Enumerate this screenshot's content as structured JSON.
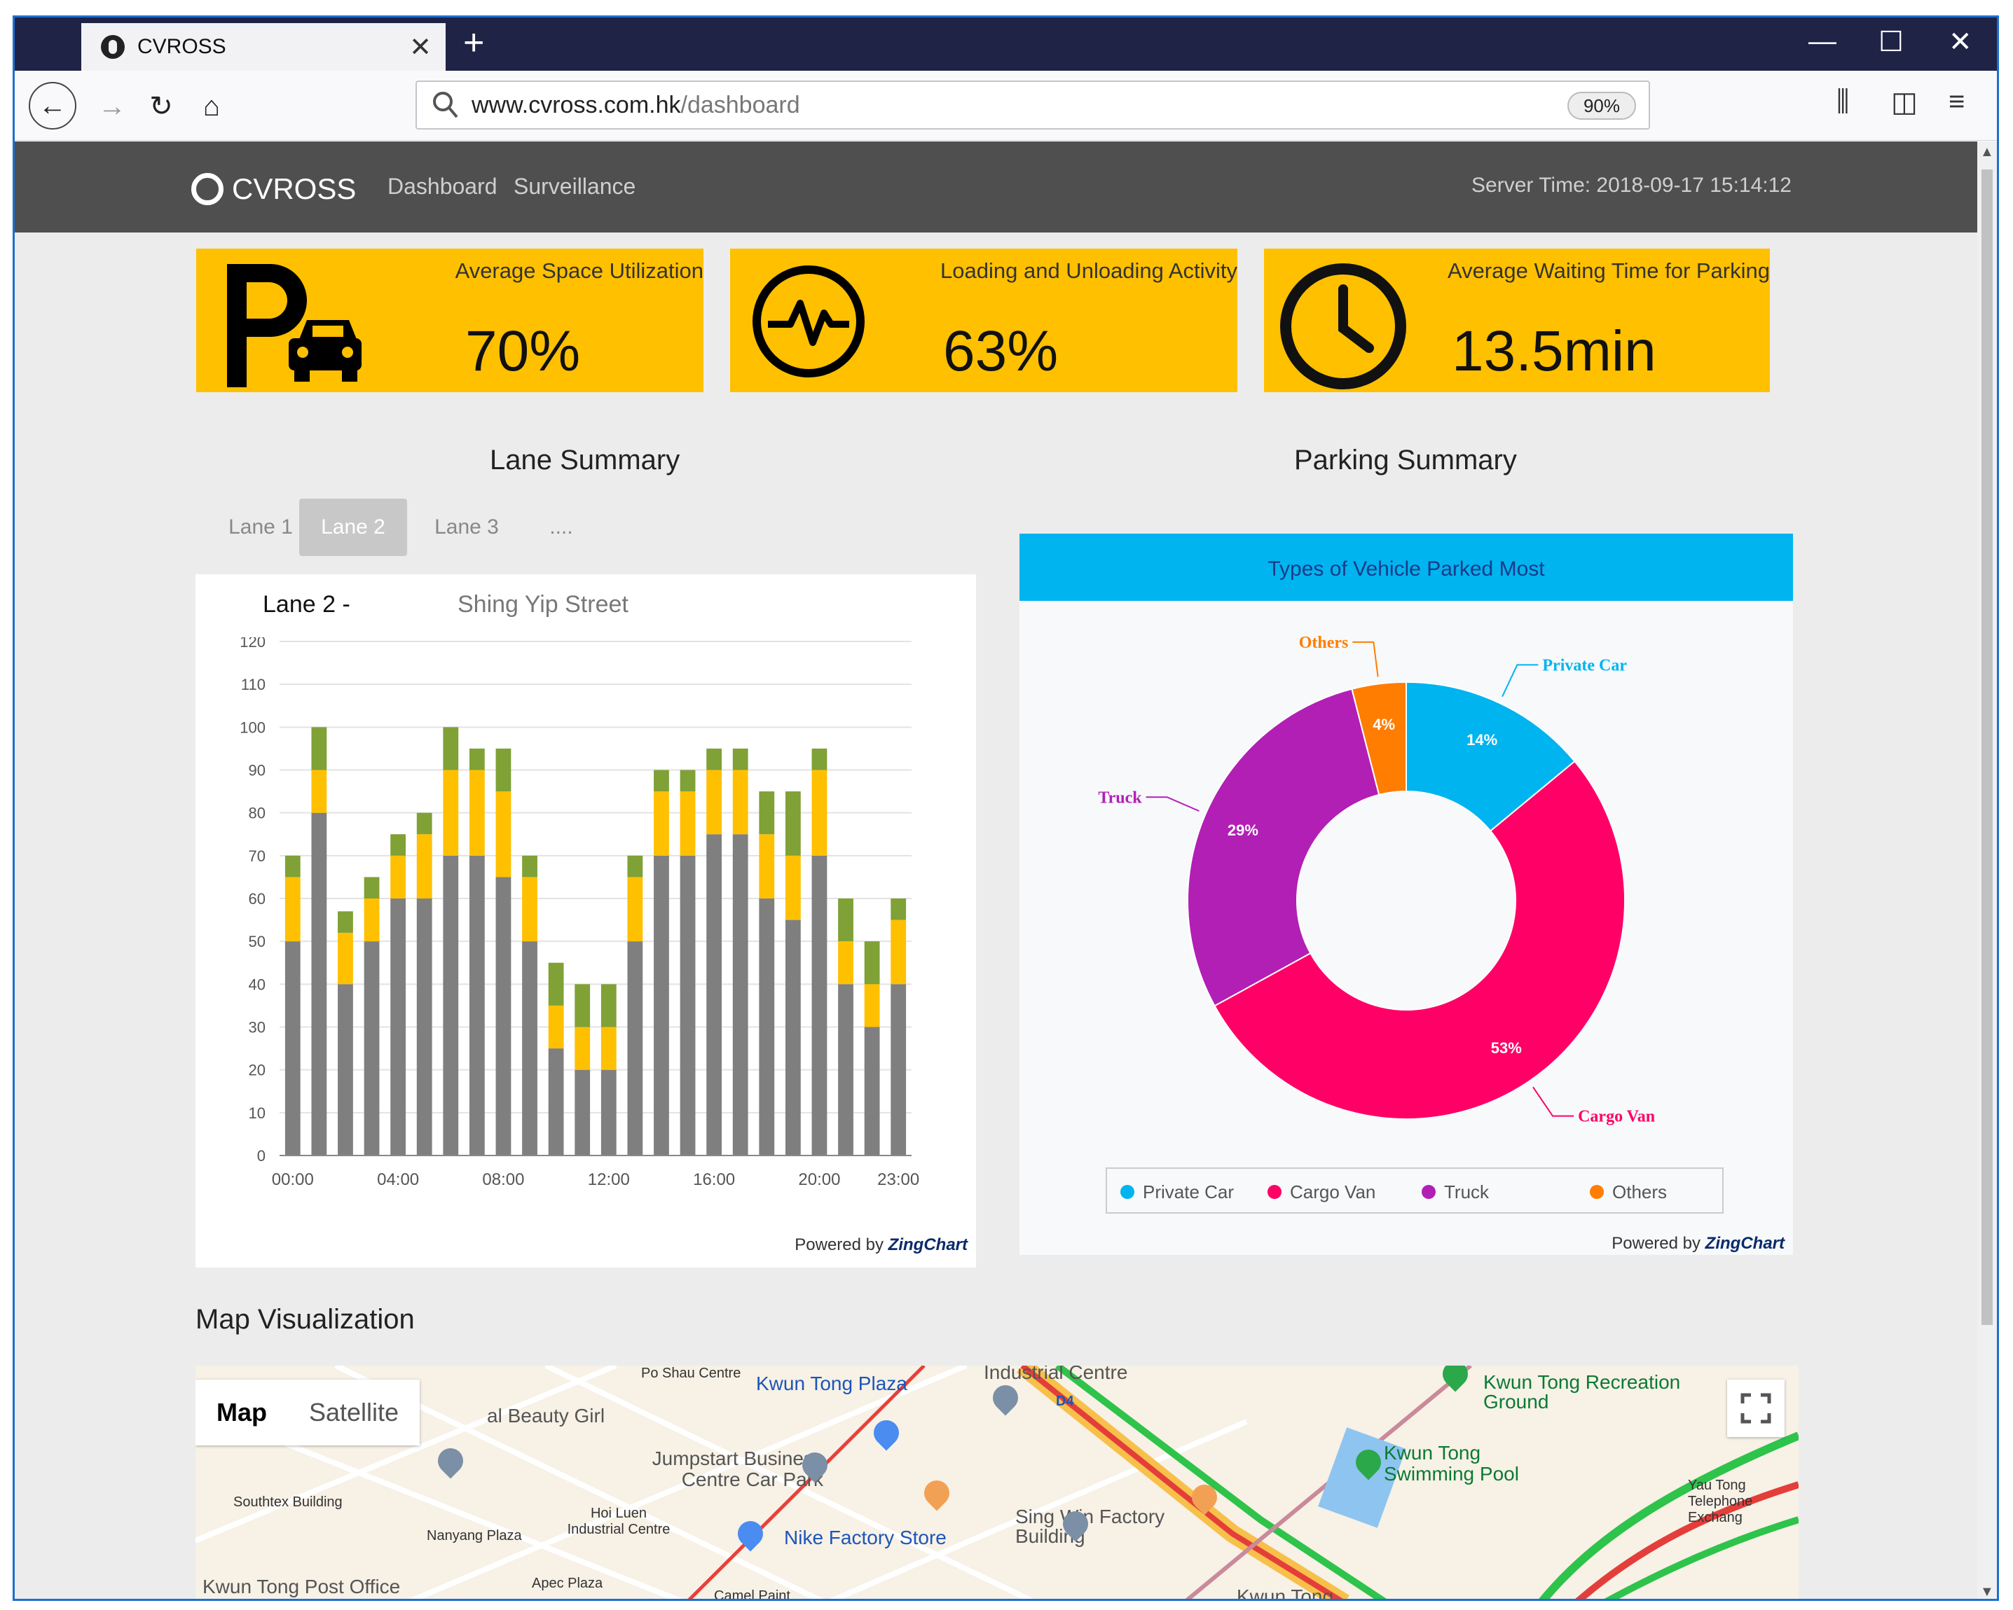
{
  "browser": {
    "tab_title": "CVROSS",
    "url_host": "www.cvross.com.hk",
    "url_path": "/dashboard",
    "zoom": "90%"
  },
  "site": {
    "logo": "CVROSS",
    "nav": [
      "Dashboard",
      "Surveillance"
    ],
    "server_time": "Server Time: 2018-09-17 15:14:12"
  },
  "kpis": [
    {
      "label": "Average Space Utilization",
      "value": "70%",
      "icon": "parking-car-icon"
    },
    {
      "label": "Loading and Unloading Activity",
      "value": "63%",
      "icon": "activity-pulse-icon"
    },
    {
      "label": "Average Waiting Time for Parking",
      "value": "13.5min",
      "icon": "clock-icon"
    }
  ],
  "lane_summary": {
    "title": "Lane Summary",
    "tabs": [
      "Lane 1",
      "Lane 2",
      "Lane 3",
      "...."
    ],
    "active_tab": "Lane 2",
    "panel_lane": "Lane 2 -",
    "panel_street": "Shing Yip Street",
    "powered": "Powered by",
    "powered_brand": "ZingChart"
  },
  "parking_summary": {
    "title": "Parking Summary",
    "powered": "Powered by",
    "powered_brand": "ZingChart"
  },
  "map": {
    "title": "Map Visualization",
    "buttons": [
      "Map",
      "Satellite"
    ],
    "labels": [
      "Po Shau Centre",
      "Kwun Tong Plaza",
      "Industrial Centre",
      "Kwun Tong Recreation Ground",
      "al Beauty Girl",
      "Jumpstart Business Centre Car Park",
      "Kwun Tong Swimming Pool",
      "Southtex Building",
      "Nanyang Plaza",
      "Hoi Luen Industrial Centre",
      "Nike Factory Store",
      "Sing Win Factory Building",
      "Yau Tong Telephone Exchang",
      "Kwun Tong Post Office",
      "Apec Plaza",
      "Camel Paint",
      "Kwun Tong",
      "D4"
    ]
  },
  "chart_data": [
    {
      "type": "bar",
      "stacked": true,
      "title": "",
      "categories": [
        "00:00",
        "01:00",
        "02:00",
        "03:00",
        "04:00",
        "05:00",
        "06:00",
        "07:00",
        "08:00",
        "09:00",
        "10:00",
        "11:00",
        "12:00",
        "13:00",
        "14:00",
        "15:00",
        "16:00",
        "17:00",
        "18:00",
        "19:00",
        "20:00",
        "21:00",
        "22:00",
        "23:00"
      ],
      "x_tick_labels": [
        "00:00",
        "04:00",
        "08:00",
        "12:00",
        "16:00",
        "20:00",
        "23:00"
      ],
      "series": [
        {
          "values": [
            50,
            80,
            40,
            50,
            60,
            60,
            70,
            70,
            65,
            50,
            25,
            20,
            20,
            50,
            70,
            70,
            75,
            75,
            60,
            55,
            70,
            40,
            30,
            40
          ],
          "color": "#7f7f7f"
        },
        {
          "values": [
            15,
            10,
            12,
            10,
            10,
            15,
            20,
            20,
            20,
            15,
            10,
            10,
            10,
            15,
            15,
            15,
            15,
            15,
            15,
            15,
            20,
            10,
            10,
            15
          ],
          "color": "#ffc000"
        },
        {
          "values": [
            5,
            10,
            5,
            5,
            5,
            5,
            10,
            5,
            10,
            5,
            10,
            10,
            10,
            5,
            5,
            5,
            5,
            5,
            10,
            15,
            5,
            10,
            10,
            5
          ],
          "color": "#7fa136"
        }
      ],
      "ylim": [
        0,
        120
      ],
      "y_ticks": [
        0,
        10,
        20,
        30,
        40,
        50,
        60,
        70,
        80,
        90,
        100,
        110,
        120
      ],
      "grid": true
    },
    {
      "type": "pie",
      "donut": true,
      "title": "Types of Vehicle Parked Most",
      "categories": [
        "Private Car",
        "Cargo Van",
        "Truck",
        "Others"
      ],
      "values": [
        14,
        53,
        29,
        4
      ],
      "value_labels": [
        "14%",
        "53%",
        "29%",
        "4%"
      ],
      "colors": [
        "#00b4ef",
        "#ff0066",
        "#b21fb5",
        "#ff7d00"
      ],
      "legend": [
        "Private Car",
        "Cargo Van",
        "Truck",
        "Others"
      ],
      "legend_position": "bottom"
    }
  ]
}
